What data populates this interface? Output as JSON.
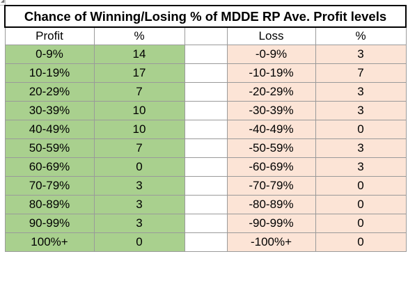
{
  "title": "Chance of Winning/Losing % of MDDE RP Ave. Profit levels",
  "headers": {
    "profit": "Profit",
    "profit_pct": "%",
    "loss": "Loss",
    "loss_pct": "%"
  },
  "rows": [
    {
      "profit": "0-9%",
      "profit_pct": "14",
      "loss": "-0-9%",
      "loss_pct": "3"
    },
    {
      "profit": "10-19%",
      "profit_pct": "17",
      "loss": "-10-19%",
      "loss_pct": "7"
    },
    {
      "profit": "20-29%",
      "profit_pct": "7",
      "loss": "-20-29%",
      "loss_pct": "3"
    },
    {
      "profit": "30-39%",
      "profit_pct": "10",
      "loss": "-30-39%",
      "loss_pct": "3"
    },
    {
      "profit": "40-49%",
      "profit_pct": "10",
      "loss": "-40-49%",
      "loss_pct": "0"
    },
    {
      "profit": "50-59%",
      "profit_pct": "7",
      "loss": "-50-59%",
      "loss_pct": "3"
    },
    {
      "profit": "60-69%",
      "profit_pct": "0",
      "loss": "-60-69%",
      "loss_pct": "3"
    },
    {
      "profit": "70-79%",
      "profit_pct": "3",
      "loss": "-70-79%",
      "loss_pct": "0"
    },
    {
      "profit": "80-89%",
      "profit_pct": "3",
      "loss": "-80-89%",
      "loss_pct": "0"
    },
    {
      "profit": "90-99%",
      "profit_pct": "3",
      "loss": "-90-99%",
      "loss_pct": "0"
    },
    {
      "profit": "100%+",
      "profit_pct": "0",
      "loss": "-100%+",
      "loss_pct": "0"
    }
  ],
  "colors": {
    "profit_fill": "#a9d08e",
    "loss_fill": "#fce4d6",
    "border": "#9a9a9a"
  }
}
